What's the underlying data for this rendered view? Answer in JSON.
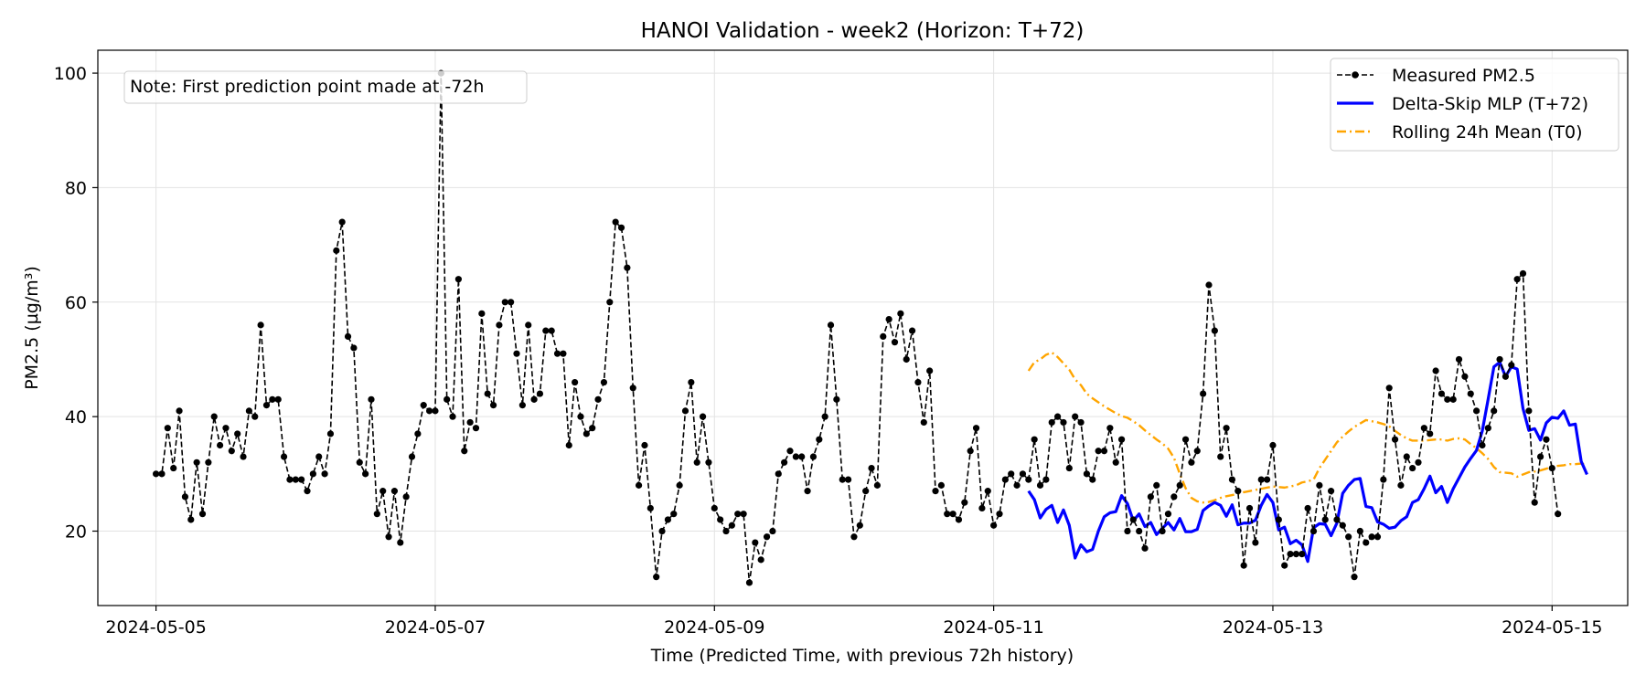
{
  "chart_data": {
    "type": "line",
    "title": "HANOI Validation - week2 (Horizon: T+72)",
    "xlabel": "Time (Predicted Time, with previous 72h history)",
    "ylabel": "PM2.5 (µg/m³)",
    "x_ticks": [
      "2024-05-05",
      "2024-05-07",
      "2024-05-09",
      "2024-05-11",
      "2024-05-13",
      "2024-05-15"
    ],
    "y_ticks": [
      20,
      40,
      60,
      80,
      100
    ],
    "xlim": [
      "2024-05-04 14:00",
      "2024-05-15 13:00"
    ],
    "ylim": [
      7,
      104
    ],
    "grid": true,
    "legend_position": "top-right",
    "note": "Note: First prediction point made at -72h",
    "series": [
      {
        "name": "Measured PM2.5",
        "style": "dashed-with-markers",
        "color": "#000000",
        "start": "2024-05-05 00:00",
        "step_hours": 1,
        "values": [
          30,
          30,
          38,
          31,
          41,
          26,
          22,
          32,
          23,
          32,
          40,
          35,
          38,
          34,
          37,
          33,
          41,
          40,
          56,
          42,
          43,
          43,
          33,
          29,
          29,
          29,
          27,
          30,
          33,
          30,
          37,
          69,
          74,
          54,
          52,
          32,
          30,
          43,
          23,
          27,
          19,
          27,
          18,
          26,
          33,
          37,
          42,
          41,
          41,
          100,
          43,
          40,
          64,
          34,
          39,
          38,
          58,
          44,
          42,
          56,
          60,
          60,
          51,
          42,
          56,
          43,
          44,
          55,
          55,
          51,
          51,
          35,
          46,
          40,
          37,
          38,
          43,
          46,
          60,
          74,
          73,
          66,
          45,
          28,
          35,
          24,
          12,
          20,
          22,
          23,
          28,
          41,
          46,
          32,
          40,
          32,
          24,
          22,
          20,
          21,
          23,
          23,
          11,
          18,
          15,
          19,
          20,
          30,
          32,
          34,
          33,
          33,
          27,
          33,
          36,
          40,
          56,
          43,
          29,
          29,
          19,
          21,
          27,
          31,
          28,
          54,
          57,
          53,
          58,
          50,
          55,
          46,
          39,
          48,
          27,
          28,
          23,
          23,
          22,
          25,
          34,
          38,
          24,
          27,
          21,
          23,
          29,
          30,
          28,
          30,
          29,
          36,
          28,
          29,
          39,
          40,
          39,
          31,
          40,
          39,
          30,
          29,
          34,
          34,
          38,
          32,
          36,
          20,
          22,
          20,
          17,
          26,
          28,
          20,
          23,
          26,
          28,
          36,
          32,
          34,
          44,
          63,
          55,
          33,
          38,
          29,
          27,
          14,
          24,
          18,
          29,
          29,
          35,
          22,
          14,
          16,
          16,
          16,
          24,
          20,
          28,
          22,
          27,
          22,
          21,
          19,
          12,
          20,
          18,
          19,
          19,
          29,
          45,
          36,
          28,
          33,
          31,
          32,
          38,
          37,
          48,
          44,
          43,
          43,
          50,
          47,
          44,
          41,
          35,
          38,
          41,
          50,
          47,
          49,
          64,
          65,
          41,
          25,
          33,
          36,
          31,
          23
        ]
      },
      {
        "name": "Delta-Skip MLP (T+72)",
        "style": "solid",
        "color": "#0000ff",
        "start": "2024-05-11 06:00",
        "step_hours": 1,
        "values": [
          27,
          25.5,
          22.3,
          23.8,
          24.5,
          21.5,
          23.7,
          21,
          15.3,
          17.6,
          16.4,
          16.8,
          20,
          22.5,
          23.2,
          23.4,
          26.2,
          24.8,
          21.8,
          23,
          20.8,
          21.5,
          19.4,
          20.5,
          21.5,
          20.2,
          22.2,
          19.9,
          19.9,
          20.3,
          23.6,
          24.4,
          25,
          24.5,
          22.6,
          24.6,
          21.1,
          21.4,
          21.4,
          21.9,
          24.5,
          26.4,
          25,
          20.2,
          20.7,
          17.8,
          18.4,
          17.6,
          14.7,
          20.6,
          21.3,
          21.2,
          19.2,
          21.4,
          26.6,
          28,
          29,
          29.2,
          24.3,
          24.1,
          21.6,
          21.2,
          20.5,
          20.7,
          21.8,
          22.5,
          25,
          25.5,
          27.4,
          29.6,
          26.7,
          27.8,
          25,
          27.4,
          29.3,
          31.2,
          32.7,
          34.1,
          37.5,
          43,
          48.7,
          49.5,
          47,
          48.7,
          48.3,
          41.4,
          37.6,
          37.9,
          35.9,
          38.9,
          39.9,
          39.7,
          41,
          38.5,
          38.7,
          32.2,
          29.9
        ]
      },
      {
        "name": "Rolling 24h Mean (T0)",
        "style": "dashdot",
        "color": "#ffa500",
        "start": "2024-05-11 06:00",
        "step_hours": 1,
        "values": [
          48,
          49.5,
          50,
          50.8,
          51.2,
          50.4,
          49.3,
          48.2,
          46.5,
          45.5,
          44,
          43.2,
          42.5,
          41.8,
          41.2,
          40.6,
          40.1,
          39.8,
          39.2,
          38.5,
          37.6,
          36.8,
          36,
          35.3,
          34.4,
          32.8,
          30,
          27.5,
          25.8,
          25.2,
          25,
          25.1,
          25.4,
          25.8,
          26.1,
          26.3,
          26.5,
          26.8,
          27,
          27.2,
          27.4,
          27.6,
          27.8,
          27.7,
          27.6,
          27.8,
          28,
          28.5,
          28.7,
          29,
          31,
          32.5,
          34,
          35.5,
          36.5,
          37.4,
          38.2,
          38.8,
          39.4,
          39.2,
          39,
          38.7,
          38.3,
          37.5,
          36.8,
          36.2,
          35.8,
          35.8,
          35.8,
          35.9,
          36,
          36,
          35.8,
          36.1,
          36.2,
          36,
          35.2,
          34.5,
          33.6,
          32.6,
          31.2,
          30.3,
          30.2,
          30.1,
          29.5,
          29.9,
          30.3,
          30.4,
          30.6,
          30.9,
          31.3,
          31.4,
          31.5,
          31.7,
          31.7,
          31.8,
          31.6
        ]
      }
    ]
  }
}
